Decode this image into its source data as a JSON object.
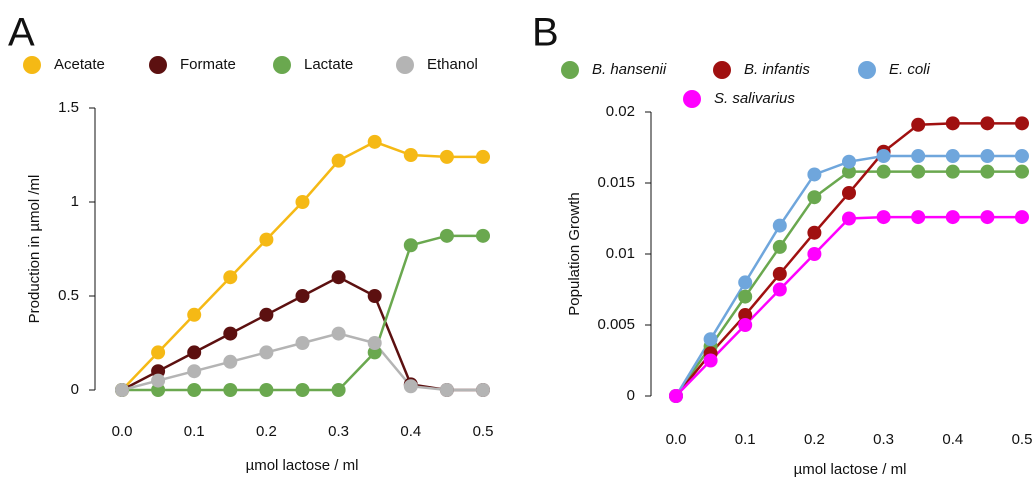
{
  "chart_data": [
    {
      "type": "line",
      "panel_label": "A",
      "x_label": "µmol lactose / ml",
      "y_label": "Production in µmol /ml",
      "x": [
        0,
        0.05,
        0.1,
        0.15,
        0.2,
        0.25,
        0.3,
        0.35,
        0.4,
        0.45,
        0.5
      ],
      "series": [
        {
          "name": "Acetate",
          "color": "#f5b915",
          "values": [
            0,
            0.2,
            0.4,
            0.6,
            0.8,
            1.0,
            1.22,
            1.32,
            1.25,
            1.24,
            1.24
          ]
        },
        {
          "name": "Formate",
          "color": "#5c1010",
          "values": [
            0,
            0.1,
            0.2,
            0.3,
            0.4,
            0.5,
            0.6,
            0.5,
            0.03,
            0,
            0
          ]
        },
        {
          "name": "Lactate",
          "color": "#6aa84f",
          "values": [
            0,
            0,
            0,
            0,
            0,
            0,
            0,
            0.2,
            0.77,
            0.82,
            0.82
          ]
        },
        {
          "name": "Ethanol",
          "color": "#b4b4b4",
          "values": [
            0,
            0.05,
            0.1,
            0.15,
            0.2,
            0.25,
            0.3,
            0.25,
            0.02,
            0,
            0
          ]
        }
      ],
      "xlim": [
        0,
        0.5
      ],
      "xticks": [
        {
          "value": 0,
          "label": "0.0"
        },
        0.1,
        0.2,
        0.3,
        0.4,
        0.5
      ],
      "ylim": [
        0,
        1.5
      ],
      "yticks": [
        0,
        0.5,
        1,
        1.5
      ],
      "legend_italic": false
    },
    {
      "type": "line",
      "panel_label": "B",
      "x_label": "µmol lactose / ml",
      "y_label": "Population Growth",
      "x": [
        0,
        0.05,
        0.1,
        0.15,
        0.2,
        0.25,
        0.3,
        0.35,
        0.4,
        0.45,
        0.5
      ],
      "series": [
        {
          "name": "B. hansenii",
          "color": "#6aa84f",
          "values": [
            0,
            0.0035,
            0.007,
            0.0105,
            0.014,
            0.0158,
            0.0158,
            0.0158,
            0.0158,
            0.0158,
            0.0158
          ]
        },
        {
          "name": "B. infantis",
          "color": "#a01010",
          "values": [
            0,
            0.003,
            0.0057,
            0.0086,
            0.0115,
            0.0143,
            0.0172,
            0.0191,
            0.0192,
            0.0192,
            0.0192
          ]
        },
        {
          "name": "E. coli",
          "color": "#6fa6dc",
          "values": [
            0,
            0.004,
            0.008,
            0.012,
            0.0156,
            0.0165,
            0.0169,
            0.0169,
            0.0169,
            0.0169,
            0.0169
          ]
        },
        {
          "name": "S. salivarius",
          "color": "#ff00ff",
          "values": [
            0,
            0.0025,
            0.005,
            0.0075,
            0.01,
            0.0125,
            0.0126,
            0.0126,
            0.0126,
            0.0126,
            0.0126
          ]
        }
      ],
      "xlim": [
        0,
        0.5
      ],
      "xticks": [
        {
          "value": 0,
          "label": "0.0"
        },
        0.1,
        0.2,
        0.3,
        0.4,
        0.5
      ],
      "ylim": [
        0,
        0.02
      ],
      "yticks": [
        0,
        0.005,
        0.01,
        0.015,
        0.02
      ],
      "legend_italic": true
    }
  ]
}
